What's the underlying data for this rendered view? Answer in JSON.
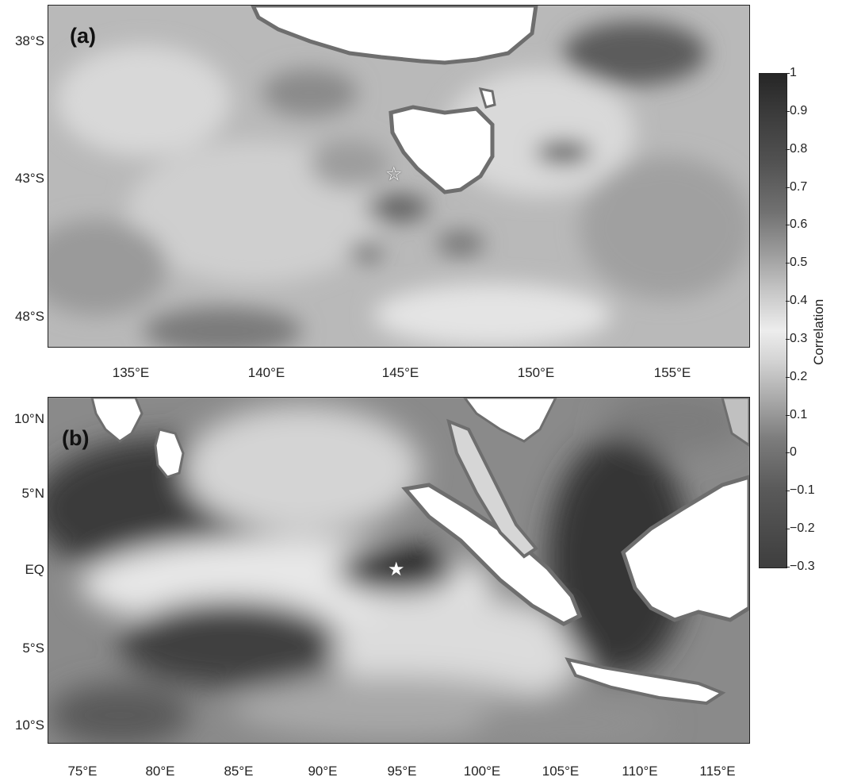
{
  "panel_a": {
    "label": "(a)",
    "lat_ticks": [
      "38°S",
      "43°S",
      "48°S"
    ],
    "lon_ticks": [
      "135°E",
      "140°E",
      "145°E",
      "150°E",
      "155°E"
    ],
    "marker": "☆",
    "region": "Tasmania / south-eastern Australia"
  },
  "panel_b": {
    "label": "(b)",
    "lat_ticks": [
      "10°N",
      "5°N",
      "EQ",
      "5°S",
      "10°S"
    ],
    "lon_ticks": [
      "75°E",
      "80°E",
      "85°E",
      "90°E",
      "95°E",
      "100°E",
      "105°E",
      "110°E",
      "115°E"
    ],
    "marker": "★",
    "region": "Eastern Indian Ocean / Sumatra"
  },
  "colorbar": {
    "title": "Correlation",
    "ticks": [
      "1",
      "0.9",
      "0.8",
      "0.7",
      "0.6",
      "0.5",
      "0.4",
      "0.3",
      "0.2",
      "0.1",
      "0",
      "−0.1",
      "−0.2",
      "−0.3"
    ],
    "min": -0.3,
    "max": 1,
    "colormap": [
      "#262626",
      "#717171",
      "#ededed",
      "#7c7c7c",
      "#3e3e3e"
    ]
  },
  "colors": {
    "land": "#ffffff",
    "coastline": "#6e6e6e",
    "frame": "#222222"
  }
}
